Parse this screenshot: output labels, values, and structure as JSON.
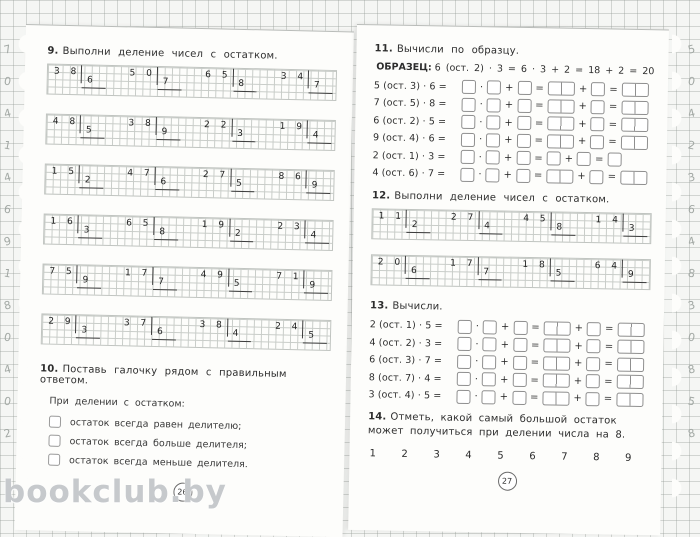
{
  "watermark": "bookclub.by",
  "ops": [
    "·",
    "+",
    "=",
    "+",
    "="
  ],
  "decor": {
    "left_edge_digits": [
      "7",
      "0",
      "4",
      "1",
      "4",
      "6",
      "9",
      "1",
      "8",
      "0",
      "4",
      "0",
      "2"
    ],
    "right_edge_digits": [
      "5",
      "0",
      "4",
      "2",
      "3",
      "6",
      "4",
      "8",
      "3",
      "0",
      "8",
      "5",
      "8"
    ]
  },
  "left_page": {
    "page_number": "26",
    "ex9": {
      "number": "9.",
      "title": "Выполни деление чисел с остатком.",
      "rows": [
        [
          {
            "dividend": "38",
            "divisor": "6"
          },
          {
            "dividend": "50",
            "divisor": "7"
          },
          {
            "dividend": "65",
            "divisor": "8"
          },
          {
            "dividend": "34",
            "divisor": "7"
          }
        ],
        [
          {
            "dividend": "48",
            "divisor": "5"
          },
          {
            "dividend": "38",
            "divisor": "9"
          },
          {
            "dividend": "22",
            "divisor": "3"
          },
          {
            "dividend": "19",
            "divisor": "4"
          }
        ],
        [
          {
            "dividend": "15",
            "divisor": "2"
          },
          {
            "dividend": "47",
            "divisor": "6"
          },
          {
            "dividend": "27",
            "divisor": "5"
          },
          {
            "dividend": "86",
            "divisor": "9"
          }
        ],
        [
          {
            "dividend": "16",
            "divisor": "3"
          },
          {
            "dividend": "65",
            "divisor": "8"
          },
          {
            "dividend": "19",
            "divisor": "2"
          },
          {
            "dividend": "23",
            "divisor": "4"
          }
        ],
        [
          {
            "dividend": "75",
            "divisor": "9"
          },
          {
            "dividend": "17",
            "divisor": "7"
          },
          {
            "dividend": "49",
            "divisor": "5"
          },
          {
            "dividend": "71",
            "divisor": "9"
          }
        ],
        [
          {
            "dividend": "29",
            "divisor": "3"
          },
          {
            "dividend": "37",
            "divisor": "6"
          },
          {
            "dividend": "38",
            "divisor": "4"
          },
          {
            "dividend": "24",
            "divisor": "5"
          }
        ]
      ]
    },
    "ex10": {
      "number": "10.",
      "title": "Поставь галочку рядом с правильным ответом.",
      "subtitle": "При делении с остатком:",
      "options": [
        "остаток всегда равен делителю;",
        "остаток всегда больше делителя;",
        "остаток всегда меньше делителя."
      ]
    }
  },
  "right_page": {
    "page_number": "27",
    "ex11": {
      "number": "11.",
      "title": "Вычисли по образцу.",
      "example_label": "ОБРАЗЕЦ:",
      "example_text": "6 (ост. 2) · 3 = 6 · 3 + 2 = 18 + 2 = 20",
      "lines": [
        {
          "prefix": "5 (ост. 3) · 6 =",
          "wide_results": true
        },
        {
          "prefix": "7 (ост. 5) · 8 =",
          "wide_results": true
        },
        {
          "prefix": "6 (ост. 2) · 5 =",
          "wide_results": true
        },
        {
          "prefix": "9 (ост. 4) · 6 =",
          "wide_results": true
        },
        {
          "prefix": "2 (ост. 1) · 3 =",
          "wide_results": false
        },
        {
          "prefix": "4 (ост. 6) · 7 =",
          "wide_results": true
        }
      ]
    },
    "ex12": {
      "number": "12.",
      "title": "Выполни деление чисел с остатком.",
      "rows": [
        [
          {
            "dividend": "11",
            "divisor": "2"
          },
          {
            "dividend": "27",
            "divisor": "4"
          },
          {
            "dividend": "45",
            "divisor": "8"
          },
          {
            "dividend": "14",
            "divisor": "3"
          }
        ],
        [
          {
            "dividend": "20",
            "divisor": "6"
          },
          {
            "dividend": "17",
            "divisor": "7"
          },
          {
            "dividend": "18",
            "divisor": "5"
          },
          {
            "dividend": "64",
            "divisor": "9"
          }
        ]
      ]
    },
    "ex13": {
      "number": "13.",
      "title": "Вычисли.",
      "lines": [
        {
          "prefix": "2 (ост. 1) · 5 =",
          "wide_results": true
        },
        {
          "prefix": "4 (ост. 2) · 3 =",
          "wide_results": true
        },
        {
          "prefix": "6 (ост. 3) · 7 =",
          "wide_results": true
        },
        {
          "prefix": "8 (ост. 7) · 4 =",
          "wide_results": true
        },
        {
          "prefix": "3 (ост. 4) · 5 =",
          "wide_results": true
        }
      ]
    },
    "ex14": {
      "number": "14.",
      "title": "Отметь, какой самый большой остаток может получиться при делении числа на 8.",
      "choices": [
        "1",
        "2",
        "3",
        "4",
        "5",
        "6",
        "7",
        "8",
        "9"
      ]
    }
  }
}
